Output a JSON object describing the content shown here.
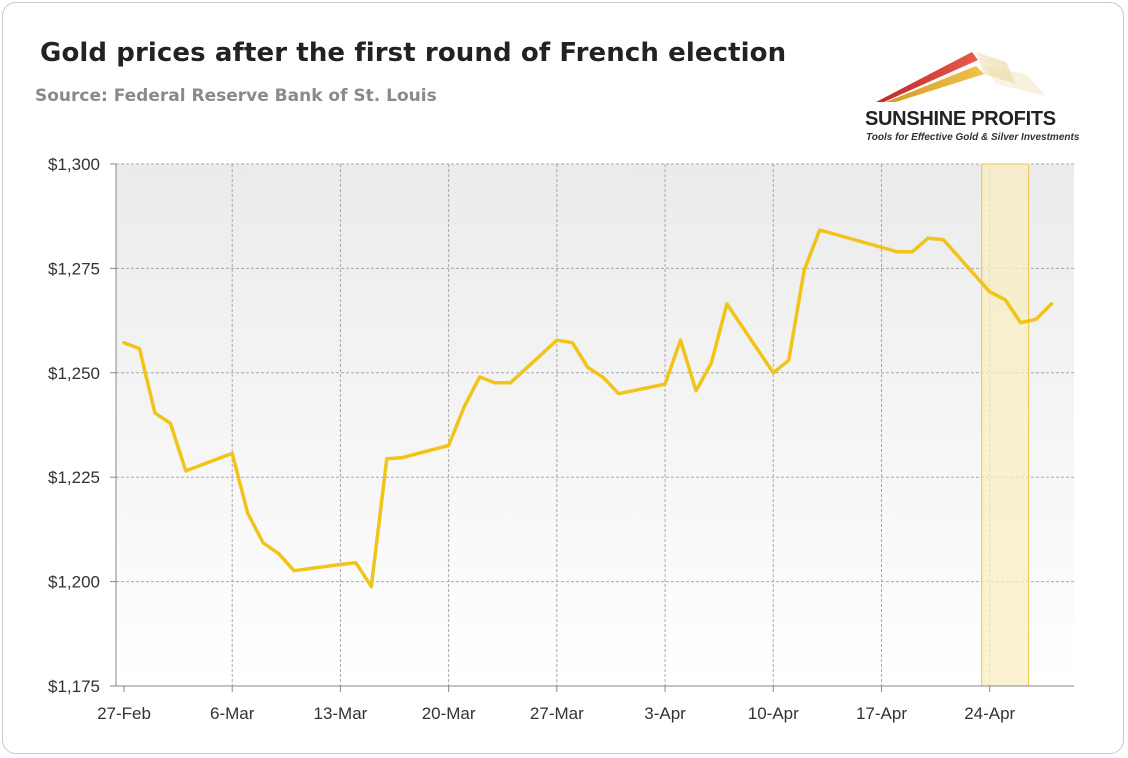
{
  "header": {
    "title": "Gold prices after the first round of French election",
    "subtitle": "Source: Federal Reserve Bank of St. Louis"
  },
  "logo": {
    "name": "SUNSHINE PROFITS",
    "tagline": "Tools for Effective Gold & Silver Investments"
  },
  "colors": {
    "line": "#f0c419",
    "highlight_fill": "#f8edc0",
    "highlight_stroke": "#e8c84a",
    "grid": "#a8a8a8"
  },
  "chart_data": {
    "type": "line",
    "title": "Gold prices after the first round of French election",
    "xlabel": "",
    "ylabel": "",
    "ylim": [
      1175,
      1300
    ],
    "y_ticks": [
      1175,
      1200,
      1225,
      1250,
      1275,
      1300
    ],
    "y_tick_labels": [
      "$1,175",
      "$1,200",
      "$1,225",
      "$1,250",
      "$1,275",
      "$1,300"
    ],
    "x_tick_labels": [
      "27-Feb",
      "6-Mar",
      "13-Mar",
      "20-Mar",
      "27-Mar",
      "3-Apr",
      "10-Apr",
      "17-Apr",
      "24-Apr"
    ],
    "x_tick_dates": [
      "2017-02-27",
      "2017-03-06",
      "2017-03-13",
      "2017-03-20",
      "2017-03-27",
      "2017-04-03",
      "2017-04-10",
      "2017-04-17",
      "2017-04-24"
    ],
    "x_range": [
      "2017-02-27",
      "2017-04-29"
    ],
    "grid": true,
    "highlight_range": [
      "2017-04-24",
      "2017-04-26"
    ],
    "series": [
      {
        "x": [
          "2017-02-27",
          "2017-02-28",
          "2017-03-01",
          "2017-03-02",
          "2017-03-03",
          "2017-03-06",
          "2017-03-07",
          "2017-03-08",
          "2017-03-09",
          "2017-03-10",
          "2017-03-13",
          "2017-03-14",
          "2017-03-15",
          "2017-03-16",
          "2017-03-17",
          "2017-03-20",
          "2017-03-21",
          "2017-03-22",
          "2017-03-23",
          "2017-03-24",
          "2017-03-27",
          "2017-03-28",
          "2017-03-29",
          "2017-03-30",
          "2017-03-31",
          "2017-04-03",
          "2017-04-04",
          "2017-04-05",
          "2017-04-06",
          "2017-04-07",
          "2017-04-10",
          "2017-04-11",
          "2017-04-12",
          "2017-04-13",
          "2017-04-18",
          "2017-04-19",
          "2017-04-20",
          "2017-04-21",
          "2017-04-24",
          "2017-04-25",
          "2017-04-26",
          "2017-04-27",
          "2017-04-28"
        ],
        "values": [
          1257.2,
          1255.8,
          1240.4,
          1237.9,
          1226.5,
          1230.7,
          1216.4,
          1209.3,
          1206.7,
          1202.6,
          1204.1,
          1204.5,
          1198.8,
          1229.4,
          1229.7,
          1232.6,
          1241.8,
          1249.0,
          1247.6,
          1247.6,
          1257.8,
          1257.2,
          1251.3,
          1248.9,
          1245.0,
          1247.3,
          1257.8,
          1245.7,
          1252.4,
          1266.5,
          1250.0,
          1253.0,
          1274.6,
          1284.2,
          1279.0,
          1279.0,
          1282.2,
          1281.9,
          1269.4,
          1267.5,
          1262.0,
          1262.8,
          1266.5
        ]
      }
    ]
  }
}
